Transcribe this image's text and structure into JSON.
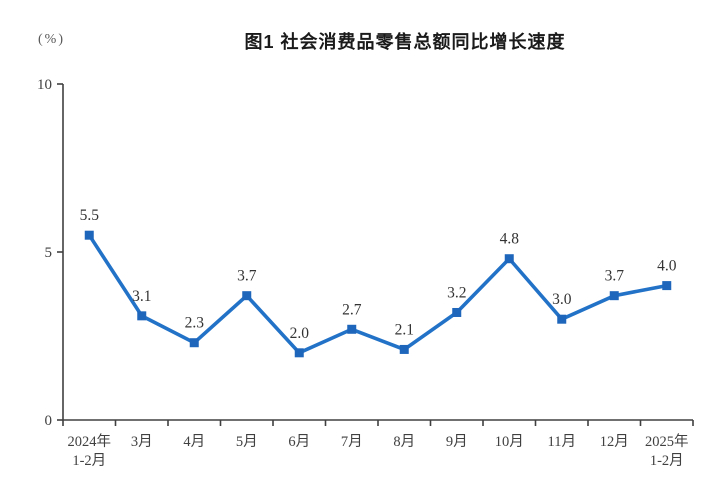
{
  "chart_data": {
    "type": "line",
    "title": "图1 社会消费品零售总额同比增长速度",
    "unit_label": "(%)",
    "categories": [
      [
        "2024年",
        "1-2月"
      ],
      [
        "3月"
      ],
      [
        "4月"
      ],
      [
        "5月"
      ],
      [
        "6月"
      ],
      [
        "7月"
      ],
      [
        "8月"
      ],
      [
        "9月"
      ],
      [
        "10月"
      ],
      [
        "11月"
      ],
      [
        "12月"
      ],
      [
        "2025年",
        "1-2月"
      ]
    ],
    "values": [
      5.5,
      3.1,
      2.3,
      3.7,
      2.0,
      2.7,
      2.1,
      3.2,
      4.8,
      3.0,
      3.7,
      4.0
    ],
    "value_label_decimals": 1,
    "xlabel": "",
    "ylabel": "(%)",
    "ylim": [
      0,
      10
    ],
    "yticks": [
      0,
      5,
      10
    ],
    "grid": false,
    "legend": "none",
    "marker": "square",
    "colors": {
      "line": "#2272C8",
      "marker": "#1E66BC",
      "axis": "#404040",
      "tick_label": "#404040",
      "value_label": "#333333",
      "title": "#1a1a1a",
      "unit": "#595959"
    }
  }
}
